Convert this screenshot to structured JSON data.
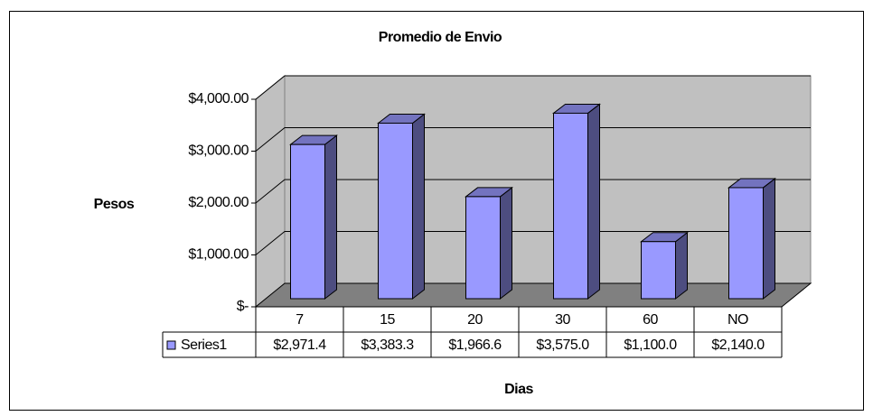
{
  "chart_data": {
    "type": "bar3d",
    "title": "Promedio de Envio",
    "y_label": "Pesos",
    "x_label": "Dias",
    "categories": [
      "7",
      "15",
      "20",
      "30",
      "60",
      "NO"
    ],
    "series": [
      {
        "name": "Series1",
        "color": "#9999ff",
        "values": [
          2971.4,
          3383.3,
          1966.6,
          3575.0,
          1100.0,
          2140.0
        ],
        "value_labels": [
          "$2,971.4",
          "$3,383.3",
          "$1,966.6",
          "$3,575.0",
          "$1,100.0",
          "$2,140.0"
        ]
      }
    ],
    "ylim": [
      0,
      4000
    ],
    "yticks": [
      {
        "value": 0,
        "label": "$-"
      },
      {
        "value": 1000,
        "label": "$1,000.00"
      },
      {
        "value": 2000,
        "label": "$2,000.00"
      },
      {
        "value": 3000,
        "label": "$3,000.00"
      },
      {
        "value": 4000,
        "label": "$4,000.00"
      }
    ],
    "grid": true,
    "data_table": true
  }
}
